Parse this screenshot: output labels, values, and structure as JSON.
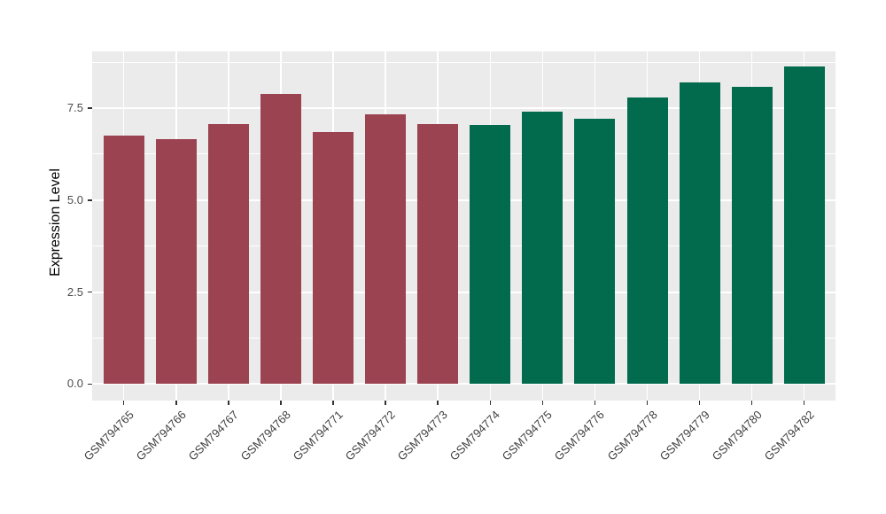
{
  "chart_data": {
    "type": "bar",
    "title": "",
    "xlabel": "",
    "ylabel": "Expression Level",
    "categories": [
      "GSM794765",
      "GSM794766",
      "GSM794767",
      "GSM794768",
      "GSM794771",
      "GSM794772",
      "GSM794773",
      "GSM794774",
      "GSM794775",
      "GSM794776",
      "GSM794778",
      "GSM794779",
      "GSM794780",
      "GSM794782"
    ],
    "values": [
      6.75,
      6.66,
      7.06,
      7.89,
      6.85,
      7.33,
      7.06,
      7.05,
      7.4,
      7.21,
      7.79,
      8.2,
      8.09,
      8.63
    ],
    "groups": [
      "red",
      "red",
      "red",
      "red",
      "red",
      "red",
      "red",
      "green",
      "green",
      "green",
      "green",
      "green",
      "green",
      "green"
    ],
    "colors": {
      "red": "#9C4351",
      "green": "#036B4D"
    },
    "y_ticks": [
      0.0,
      2.5,
      5.0,
      7.5
    ],
    "y_tick_labels": [
      "0.0",
      "2.5",
      "5.0",
      "7.5"
    ],
    "y_minor_ticks": [
      1.25,
      3.75,
      6.25,
      8.75
    ],
    "ylim": [
      -0.45,
      9.05
    ],
    "grid": "on",
    "legend": "none",
    "panel_bg": "#EBEBEB",
    "grid_color": "#FFFFFF",
    "axis_text_color": "#4D4D4D"
  }
}
